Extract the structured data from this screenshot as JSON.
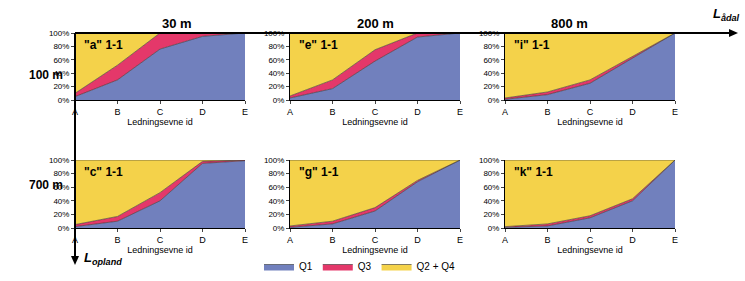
{
  "column_labels": [
    "30 m",
    "200 m",
    "800 m"
  ],
  "row_labels": [
    "100 m",
    "700 m"
  ],
  "axis_arrows": {
    "horizontal": {
      "symbol": "L",
      "subscript": "ådal"
    },
    "vertical": {
      "symbol": "L",
      "subscript": "opland"
    }
  },
  "chart_data": [
    {
      "type": "area",
      "title": "\"a\" 1-1",
      "x_label": "Ledningsevne id",
      "categories": [
        "A",
        "B",
        "C",
        "D",
        "E"
      ],
      "stacked": true,
      "grid": false,
      "legend": "bottom",
      "ylim": [
        0,
        100
      ],
      "yticks": [
        {
          "value": 0,
          "label": "0%"
        },
        {
          "value": 20,
          "label": "20%"
        },
        {
          "value": 40,
          "label": "40%"
        },
        {
          "value": 60,
          "label": "60%"
        },
        {
          "value": 80,
          "label": "80%"
        },
        {
          "value": 100,
          "label": "100%"
        }
      ],
      "series": [
        {
          "name": "Q1",
          "color": "#7180bd",
          "values": [
            5,
            30,
            76,
            95,
            100
          ]
        },
        {
          "name": "Q3",
          "color": "#e4386a",
          "values": [
            5,
            22,
            24,
            5,
            0
          ]
        },
        {
          "name": "Q2 + Q4",
          "color": "#f4d24a",
          "values": [
            90,
            48,
            0,
            0,
            0
          ]
        }
      ]
    },
    {
      "type": "area",
      "title": "\"e\" 1-1",
      "x_label": "Ledningsevne id",
      "categories": [
        "A",
        "B",
        "C",
        "D",
        "E"
      ],
      "stacked": true,
      "grid": false,
      "legend": "bottom",
      "ylim": [
        0,
        100
      ],
      "yticks": [
        {
          "value": 0,
          "label": "0%"
        },
        {
          "value": 20,
          "label": "20%"
        },
        {
          "value": 40,
          "label": "40%"
        },
        {
          "value": 60,
          "label": "60%"
        },
        {
          "value": 80,
          "label": "80%"
        },
        {
          "value": 100,
          "label": "100%"
        }
      ],
      "series": [
        {
          "name": "Q1",
          "color": "#7180bd",
          "values": [
            3,
            17,
            58,
            94,
            100
          ]
        },
        {
          "name": "Q3",
          "color": "#e4386a",
          "values": [
            3,
            13,
            17,
            6,
            0
          ]
        },
        {
          "name": "Q2 + Q4",
          "color": "#f4d24a",
          "values": [
            94,
            70,
            25,
            0,
            0
          ]
        }
      ]
    },
    {
      "type": "area",
      "title": "\"i\" 1-1",
      "x_label": "Ledningsevne id",
      "categories": [
        "A",
        "B",
        "C",
        "D",
        "E"
      ],
      "stacked": true,
      "grid": false,
      "legend": "bottom",
      "ylim": [
        0,
        100
      ],
      "yticks": [
        {
          "value": 0,
          "label": "0%"
        },
        {
          "value": 20,
          "label": "20%"
        },
        {
          "value": 40,
          "label": "40%"
        },
        {
          "value": 60,
          "label": "60%"
        },
        {
          "value": 80,
          "label": "80%"
        },
        {
          "value": 100,
          "label": "100%"
        }
      ],
      "series": [
        {
          "name": "Q1",
          "color": "#7180bd",
          "values": [
            1,
            8,
            25,
            63,
            100
          ]
        },
        {
          "name": "Q3",
          "color": "#e4386a",
          "values": [
            2,
            4,
            5,
            2,
            0
          ]
        },
        {
          "name": "Q2 + Q4",
          "color": "#f4d24a",
          "values": [
            97,
            88,
            70,
            35,
            0
          ]
        }
      ]
    },
    {
      "type": "area",
      "title": "\"c\" 1-1",
      "x_label": "Ledningsevne id",
      "categories": [
        "A",
        "B",
        "C",
        "D",
        "E"
      ],
      "stacked": true,
      "grid": false,
      "legend": "bottom",
      "ylim": [
        0,
        100
      ],
      "yticks": [
        {
          "value": 0,
          "label": "0%"
        },
        {
          "value": 20,
          "label": "20%"
        },
        {
          "value": 40,
          "label": "40%"
        },
        {
          "value": 60,
          "label": "60%"
        },
        {
          "value": 80,
          "label": "80%"
        },
        {
          "value": 100,
          "label": "100%"
        }
      ],
      "series": [
        {
          "name": "Q1",
          "color": "#7180bd",
          "values": [
            2,
            10,
            40,
            95,
            99
          ]
        },
        {
          "name": "Q3",
          "color": "#e4386a",
          "values": [
            3,
            7,
            12,
            3,
            1
          ]
        },
        {
          "name": "Q2 + Q4",
          "color": "#f4d24a",
          "values": [
            95,
            83,
            48,
            2,
            0
          ]
        }
      ]
    },
    {
      "type": "area",
      "title": "\"g\" 1-1",
      "x_label": "Ledningsevne id",
      "categories": [
        "A",
        "B",
        "C",
        "D",
        "E"
      ],
      "stacked": true,
      "grid": false,
      "legend": "bottom",
      "ylim": [
        0,
        100
      ],
      "yticks": [
        {
          "value": 0,
          "label": "0%"
        },
        {
          "value": 20,
          "label": "20%"
        },
        {
          "value": 40,
          "label": "40%"
        },
        {
          "value": 60,
          "label": "60%"
        },
        {
          "value": 80,
          "label": "80%"
        },
        {
          "value": 100,
          "label": "100%"
        }
      ],
      "series": [
        {
          "name": "Q1",
          "color": "#7180bd",
          "values": [
            1,
            6,
            25,
            68,
            100
          ]
        },
        {
          "name": "Q3",
          "color": "#e4386a",
          "values": [
            2,
            4,
            5,
            2,
            0
          ]
        },
        {
          "name": "Q2 + Q4",
          "color": "#f4d24a",
          "values": [
            97,
            90,
            70,
            30,
            0
          ]
        }
      ]
    },
    {
      "type": "area",
      "title": "\"k\" 1-1",
      "x_label": "Ledningsevne id",
      "categories": [
        "A",
        "B",
        "C",
        "D",
        "E"
      ],
      "stacked": true,
      "grid": false,
      "legend": "bottom",
      "ylim": [
        0,
        100
      ],
      "yticks": [
        {
          "value": 0,
          "label": "0%"
        },
        {
          "value": 20,
          "label": "20%"
        },
        {
          "value": 40,
          "label": "40%"
        },
        {
          "value": 60,
          "label": "60%"
        },
        {
          "value": 80,
          "label": "80%"
        },
        {
          "value": 100,
          "label": "100%"
        }
      ],
      "series": [
        {
          "name": "Q1",
          "color": "#7180bd",
          "values": [
            1,
            3,
            15,
            40,
            100
          ]
        },
        {
          "name": "Q3",
          "color": "#e4386a",
          "values": [
            1,
            3,
            3,
            3,
            0
          ]
        },
        {
          "name": "Q2 + Q4",
          "color": "#f4d24a",
          "values": [
            98,
            94,
            82,
            57,
            0
          ]
        }
      ]
    }
  ]
}
